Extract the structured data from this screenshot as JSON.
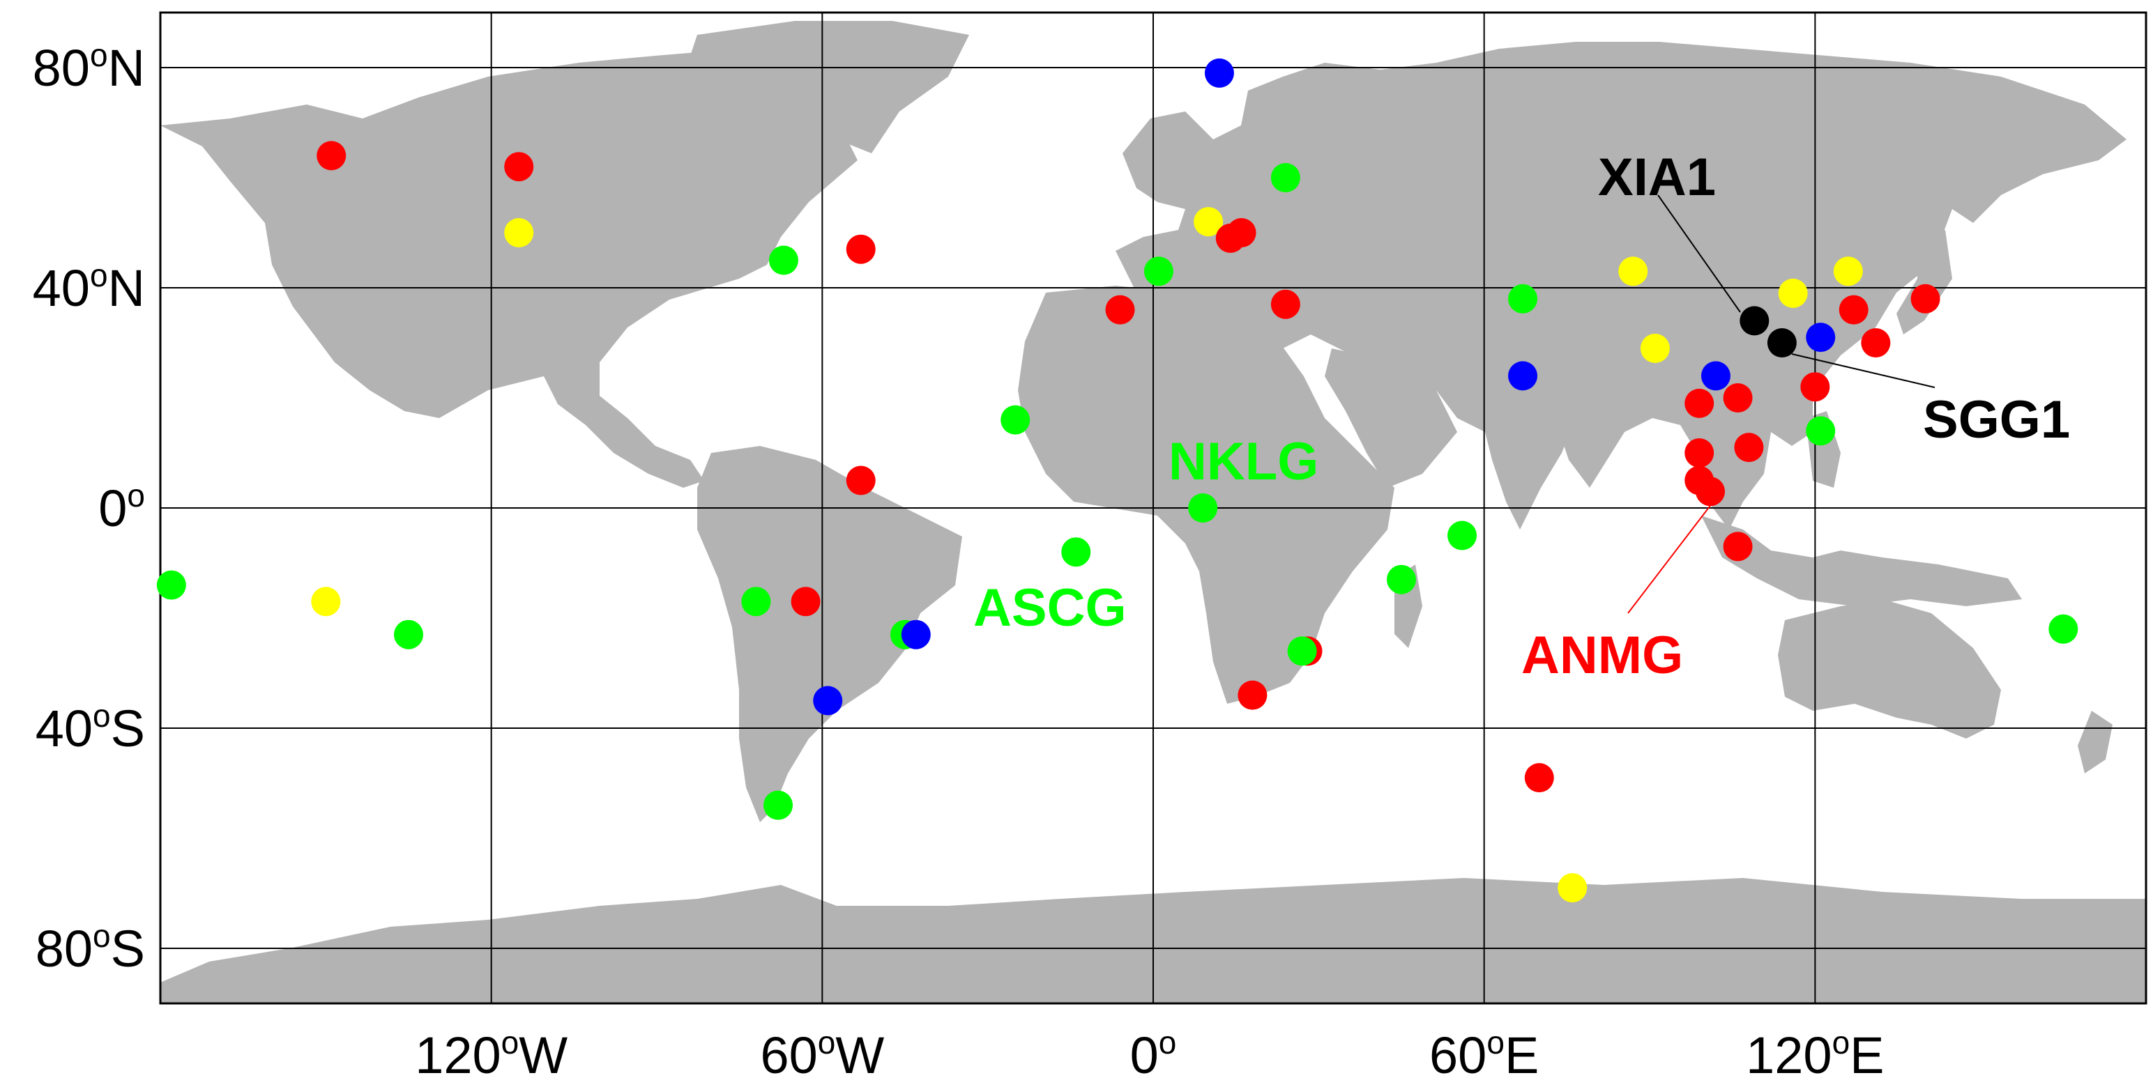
{
  "map": {
    "lat_ticks": [
      {
        "deg": "80",
        "sup": "o",
        "hemi": "N",
        "value": 80
      },
      {
        "deg": "40",
        "sup": "o",
        "hemi": "N",
        "value": 40
      },
      {
        "deg": "0",
        "sup": "o",
        "hemi": "",
        "value": 0
      },
      {
        "deg": "40",
        "sup": "o",
        "hemi": "S",
        "value": -40
      },
      {
        "deg": "80",
        "sup": "o",
        "hemi": "S",
        "value": -80
      }
    ],
    "lon_ticks": [
      {
        "deg": "120",
        "sup": "o",
        "hemi": "W",
        "value": -120
      },
      {
        "deg": "60",
        "sup": "o",
        "hemi": "W",
        "value": -60
      },
      {
        "deg": "0",
        "sup": "o",
        "hemi": "",
        "value": 0
      },
      {
        "deg": "60",
        "sup": "o",
        "hemi": "E",
        "value": 60
      },
      {
        "deg": "120",
        "sup": "o",
        "hemi": "E",
        "value": 120
      }
    ],
    "extent": {
      "lon": [
        -180,
        180
      ],
      "lat": [
        -90,
        90
      ]
    },
    "colors": {
      "land": "#b3b3b3",
      "ocean": "#ffffff",
      "grid": "#000000",
      "red": "#ff0000",
      "green": "#00ff00",
      "blue": "#0000ff",
      "yellow": "#ffff00",
      "black": "#000000"
    },
    "labels": {
      "xia1": "XIA1",
      "sgg1": "SGG1",
      "nklg": "NKLG",
      "ascg": "ASCG",
      "anmg": "ANMG"
    }
  },
  "chart_data": {
    "type": "scatter",
    "x_label": "",
    "y_label": "",
    "xlim": [
      -180,
      180
    ],
    "ylim": [
      -90,
      90
    ],
    "grid": true,
    "stations": [
      {
        "lon": -149,
        "lat": 64,
        "color": "red"
      },
      {
        "lon": -115,
        "lat": 62,
        "color": "red"
      },
      {
        "lon": -115,
        "lat": 50,
        "color": "yellow"
      },
      {
        "lon": -67,
        "lat": 45,
        "color": "green"
      },
      {
        "lon": -53,
        "lat": 47,
        "color": "red"
      },
      {
        "lon": 12,
        "lat": 79,
        "color": "blue"
      },
      {
        "lon": 24,
        "lat": 60,
        "color": "green"
      },
      {
        "lon": 10,
        "lat": 52,
        "color": "yellow"
      },
      {
        "lon": 16,
        "lat": 50,
        "color": "red"
      },
      {
        "lon": 14,
        "lat": 49,
        "color": "red"
      },
      {
        "lon": 1,
        "lat": 43,
        "color": "green"
      },
      {
        "lon": -6,
        "lat": 36,
        "color": "red"
      },
      {
        "lon": 24,
        "lat": 37,
        "color": "red"
      },
      {
        "lon": 87,
        "lat": 43,
        "color": "yellow"
      },
      {
        "lon": 67,
        "lat": 38,
        "color": "green"
      },
      {
        "lon": 67,
        "lat": 24,
        "color": "blue"
      },
      {
        "lon": 109,
        "lat": 34,
        "color": "black"
      },
      {
        "lon": 114,
        "lat": 30,
        "color": "black"
      },
      {
        "lon": 116,
        "lat": 39,
        "color": "yellow"
      },
      {
        "lon": 126,
        "lat": 43,
        "color": "yellow"
      },
      {
        "lon": 121,
        "lat": 31,
        "color": "blue"
      },
      {
        "lon": 127,
        "lat": 36,
        "color": "red"
      },
      {
        "lon": 140,
        "lat": 38,
        "color": "red"
      },
      {
        "lon": 131,
        "lat": 30,
        "color": "red"
      },
      {
        "lon": 91,
        "lat": 29,
        "color": "yellow"
      },
      {
        "lon": 102,
        "lat": 24,
        "color": "blue"
      },
      {
        "lon": 120,
        "lat": 22,
        "color": "red"
      },
      {
        "lon": 99,
        "lat": 19,
        "color": "red"
      },
      {
        "lon": 106,
        "lat": 20,
        "color": "red"
      },
      {
        "lon": 121,
        "lat": 14,
        "color": "green"
      },
      {
        "lon": 108,
        "lat": 11,
        "color": "red"
      },
      {
        "lon": 99,
        "lat": 10,
        "color": "red"
      },
      {
        "lon": 99,
        "lat": 5,
        "color": "red"
      },
      {
        "lon": 101,
        "lat": 3,
        "color": "red"
      },
      {
        "lon": 106,
        "lat": -7,
        "color": "red"
      },
      {
        "lon": -25,
        "lat": 16,
        "color": "green"
      },
      {
        "lon": -53,
        "lat": 5,
        "color": "red"
      },
      {
        "lon": 9,
        "lat": 0,
        "color": "green"
      },
      {
        "lon": -14,
        "lat": -8,
        "color": "green"
      },
      {
        "lon": 56,
        "lat": -5,
        "color": "green"
      },
      {
        "lon": 45,
        "lat": -13,
        "color": "green"
      },
      {
        "lon": -178,
        "lat": -14,
        "color": "green"
      },
      {
        "lon": -150,
        "lat": -17,
        "color": "yellow"
      },
      {
        "lon": -135,
        "lat": -23,
        "color": "green"
      },
      {
        "lon": -72,
        "lat": -17,
        "color": "green"
      },
      {
        "lon": -63,
        "lat": -17,
        "color": "red"
      },
      {
        "lon": -45,
        "lat": -23,
        "color": "green"
      },
      {
        "lon": -43,
        "lat": -23,
        "color": "blue"
      },
      {
        "lon": -59,
        "lat": -35,
        "color": "blue"
      },
      {
        "lon": -68,
        "lat": -54,
        "color": "green"
      },
      {
        "lon": 28,
        "lat": -26,
        "color": "red"
      },
      {
        "lon": 27,
        "lat": -26,
        "color": "green"
      },
      {
        "lon": 18,
        "lat": -34,
        "color": "red"
      },
      {
        "lon": 70,
        "lat": -49,
        "color": "red"
      },
      {
        "lon": 76,
        "lat": -69,
        "color": "yellow"
      },
      {
        "lon": 165,
        "lat": -22,
        "color": "green"
      }
    ]
  }
}
